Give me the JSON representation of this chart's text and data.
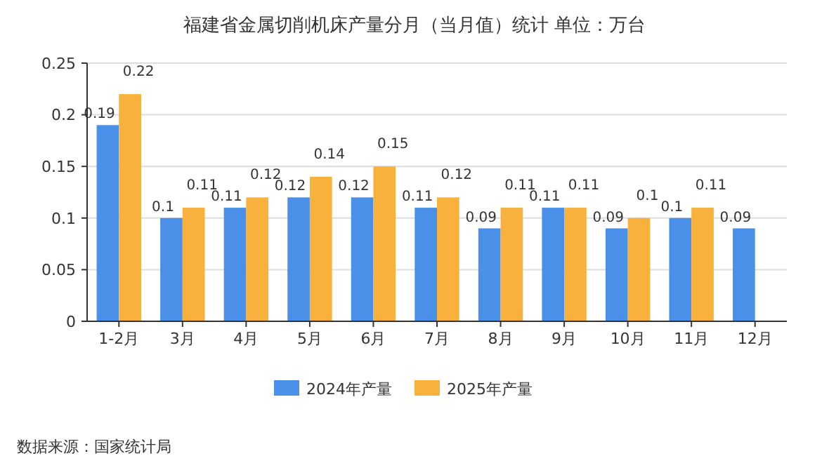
{
  "chart_data": {
    "type": "bar",
    "title": "福建省金属切削机床产量分月（当月值）统计 单位：万台",
    "categories": [
      "1-2月",
      "3月",
      "4月",
      "5月",
      "6月",
      "7月",
      "8月",
      "9月",
      "10月",
      "11月",
      "12月"
    ],
    "series": [
      {
        "name": "2024年产量",
        "color": "#4a8fe8",
        "values": [
          0.19,
          0.1,
          0.11,
          0.12,
          0.12,
          0.11,
          0.09,
          0.11,
          0.09,
          0.1,
          0.09
        ]
      },
      {
        "name": "2025年产量",
        "color": "#f9b13e",
        "values": [
          0.22,
          0.11,
          0.12,
          0.14,
          0.15,
          0.12,
          0.11,
          0.11,
          0.1,
          0.11,
          null
        ]
      }
    ],
    "ylim": [
      0,
      0.25
    ],
    "yticks": [
      0,
      0.05,
      0.1,
      0.15,
      0.2,
      0.25
    ],
    "grid": "y",
    "legend": "bottom",
    "data_labels": true,
    "annotations": [
      "数据来源：国家统计局"
    ]
  }
}
